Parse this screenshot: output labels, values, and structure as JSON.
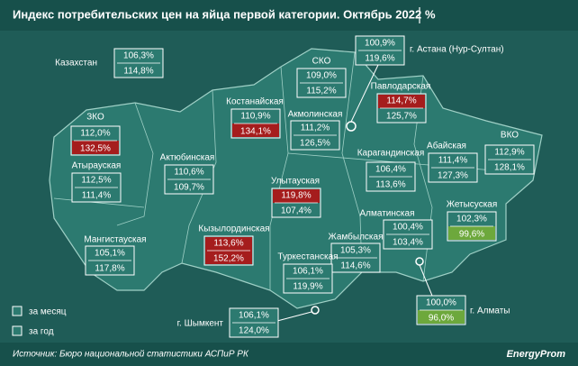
{
  "header": {
    "title": "Индекс потребительских цен на яйца первой категории. Октябрь 2022",
    "unit": "%"
  },
  "regions": [
    {
      "name": "Казахстан",
      "month": "106,3%",
      "year": "114,8%"
    },
    {
      "name": "СКО",
      "month": "109,0%",
      "year": "115,2%"
    },
    {
      "name": "г. Астана (Нур-Султан)",
      "month": "100,9%",
      "year": "119,6%"
    },
    {
      "name": "Павлодарская",
      "month": "114,7%",
      "year": "125,7%",
      "month_color": "#a51d1d"
    },
    {
      "name": "ЗКО",
      "month": "112,0%",
      "year": "132,5%",
      "year_color": "#a51d1d"
    },
    {
      "name": "Костанайская",
      "month": "110,9%",
      "year": "134,1%",
      "year_color": "#a51d1d"
    },
    {
      "name": "Акмолинская",
      "month": "111,2%",
      "year": "126,5%"
    },
    {
      "name": "Абайская",
      "month": "111,4%",
      "year": "127,3%"
    },
    {
      "name": "ВКО",
      "month": "112,9%",
      "year": "128,1%"
    },
    {
      "name": "Атырауская",
      "month": "112,5%",
      "year": "111,4%"
    },
    {
      "name": "Актюбинская",
      "month": "110,6%",
      "year": "109,7%"
    },
    {
      "name": "Карагандинская",
      "month": "106,4%",
      "year": "113,6%"
    },
    {
      "name": "Улытауская",
      "month": "119,8%",
      "year": "107,4%",
      "month_color": "#a51d1d"
    },
    {
      "name": "Алматинская",
      "month": "100,4%",
      "year": "103,4%"
    },
    {
      "name": "Жетысуская",
      "month": "102,3%",
      "year": "99,6%",
      "year_color": "#6da83c"
    },
    {
      "name": "Мангистауская",
      "month": "105,1%",
      "year": "117,8%"
    },
    {
      "name": "Кызылординская",
      "month": "113,6%",
      "year": "152,2%",
      "month_color": "#a51d1d",
      "year_color": "#a51d1d"
    },
    {
      "name": "Жамбылская",
      "month": "105,3%",
      "year": "114,6%"
    },
    {
      "name": "Туркестанская",
      "month": "106,1%",
      "year": "119,9%"
    },
    {
      "name": "г. Шымкент",
      "month": "106,1%",
      "year": "124,0%"
    },
    {
      "name": "г. Алматы",
      "month": "100,0%",
      "year": "96,0%",
      "year_color": "#6da83c"
    }
  ],
  "legend": {
    "month": "за месяц",
    "year": "за год"
  },
  "footer": {
    "source": "Источник: Бюро национальной статистики АСПиР РК",
    "logo": "EnergyProm"
  }
}
